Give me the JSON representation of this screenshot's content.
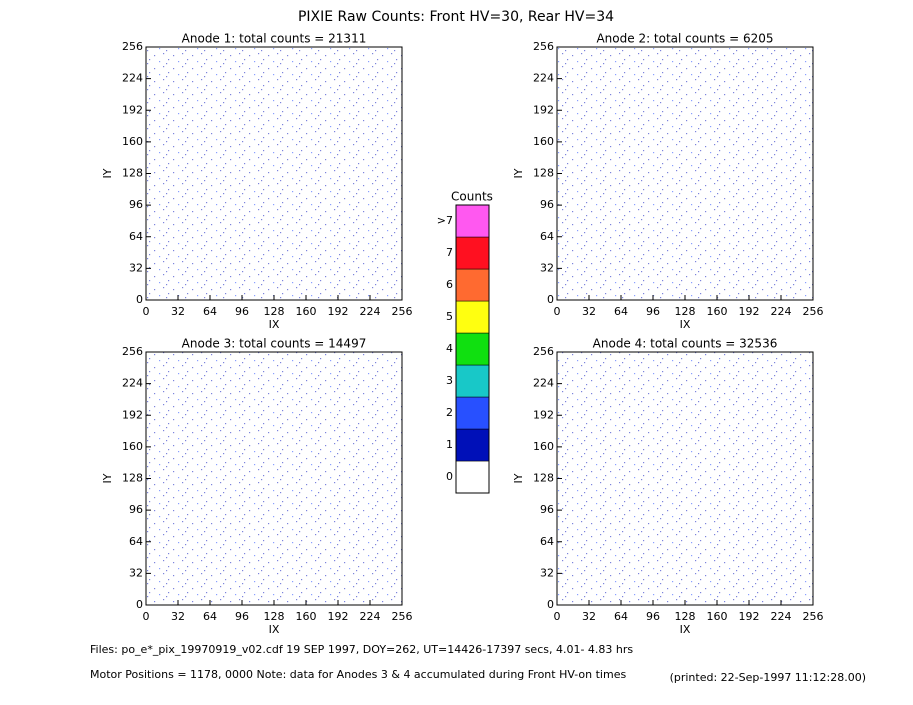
{
  "title": "PIXIE Raw Counts:  Front HV=30, Rear HV=34",
  "chart_data": [
    {
      "type": "heatmap",
      "title": "Anode 1: total counts = 21311",
      "xlabel": "IX",
      "ylabel": "IY",
      "xlim": [
        0,
        256
      ],
      "ylim": [
        0,
        256
      ],
      "xticks": [
        0,
        32,
        64,
        96,
        128,
        160,
        192,
        224,
        256
      ],
      "yticks": [
        0,
        32,
        64,
        96,
        128,
        160,
        192,
        224,
        256
      ]
    },
    {
      "type": "heatmap",
      "title": "Anode 2: total counts = 6205",
      "xlabel": "IX",
      "ylabel": "IY",
      "xlim": [
        0,
        256
      ],
      "ylim": [
        0,
        256
      ],
      "xticks": [
        0,
        32,
        64,
        96,
        128,
        160,
        192,
        224,
        256
      ],
      "yticks": [
        0,
        32,
        64,
        96,
        128,
        160,
        192,
        224,
        256
      ]
    },
    {
      "type": "heatmap",
      "title": "Anode 3: total counts = 14497",
      "xlabel": "IX",
      "ylabel": "IY",
      "xlim": [
        0,
        256
      ],
      "ylim": [
        0,
        256
      ],
      "xticks": [
        0,
        32,
        64,
        96,
        128,
        160,
        192,
        224,
        256
      ],
      "yticks": [
        0,
        32,
        64,
        96,
        128,
        160,
        192,
        224,
        256
      ]
    },
    {
      "type": "heatmap",
      "title": "Anode 4: total counts = 32536",
      "xlabel": "IX",
      "ylabel": "IY",
      "xlim": [
        0,
        256
      ],
      "ylim": [
        0,
        256
      ],
      "xticks": [
        0,
        32,
        64,
        96,
        128,
        160,
        192,
        224,
        256
      ],
      "yticks": [
        0,
        32,
        64,
        96,
        128,
        160,
        192,
        224,
        256
      ]
    }
  ],
  "colorbar": {
    "title": "Counts",
    "labels": [
      "0",
      "1",
      "2",
      "3",
      "4",
      "5",
      "6",
      "7",
      ">7"
    ],
    "colors": [
      "#ffffff",
      "#0010b8",
      "#2850ff",
      "#18c8c8",
      "#10e010",
      "#ffff10",
      "#ff6a30",
      "#ff1020",
      "#ff58f0"
    ]
  },
  "footer": {
    "files": "Files: po_e*_pix_19970919_v02.cdf    19 SEP 1997, DOY=262, UT=14426-17397 secs,  4.01- 4.83 hrs",
    "motor": "Motor Positions = 1178, 0000   Note: data for Anodes 3 & 4 accumulated during Front HV-on times",
    "printed": "(printed: 22-Sep-1997 11:12:28.00)"
  }
}
